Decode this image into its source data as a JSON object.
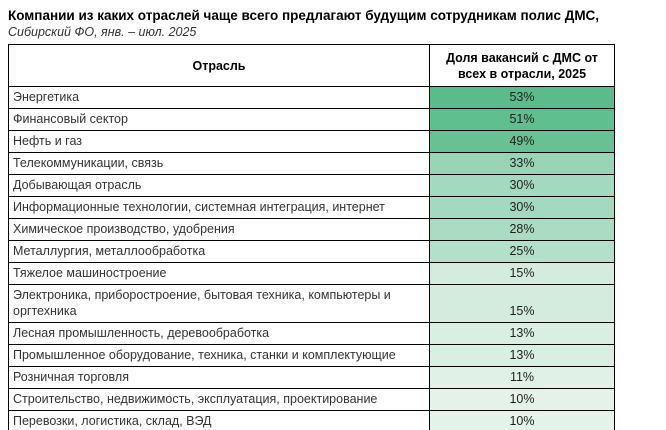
{
  "page": {
    "title": "Компании из каких отраслей чаще всего предлагают будущим сотрудникам полис ДМС,",
    "subtitle": "Сибирский ФО, янв. – июл. 2025"
  },
  "chart_data": {
    "type": "table",
    "title": "Компании из каких отраслей чаще всего предлагают будущим сотрудникам полис ДМС,",
    "subtitle": "Сибирский ФО, янв. – июл. 2025",
    "columns": [
      "Отрасль",
      "Доля вакансий с ДМС от всех в отрасли, 2025"
    ],
    "categories": [
      "Энергетика",
      "Финансовый сектор",
      "Нефть и газ",
      "Телекоммуникации, связь",
      "Добывающая отрасль",
      "Информационные технологии, системная интеграция, интернет",
      "Химическое производство, удобрения",
      "Металлургия, металлообработка",
      "Тяжелое машиностроение",
      "Электроника, приборостроение, бытовая техника, компьютеры и оргтехника",
      "Лесная промышленность, деревообработка",
      "Промышленное оборудование, техника, станки и комплектующие",
      "Розничная торговля",
      "Строительство, недвижимость, эксплуатация, проектирование",
      "Перевозки, логистика, склад, ВЭД"
    ],
    "values": [
      53,
      51,
      49,
      33,
      30,
      30,
      28,
      25,
      15,
      15,
      13,
      13,
      11,
      10,
      10
    ],
    "value_labels": [
      "53%",
      "51%",
      "49%",
      "33%",
      "30%",
      "30%",
      "28%",
      "25%",
      "15%",
      "15%",
      "13%",
      "13%",
      "11%",
      "10%",
      "10%"
    ],
    "unit": "%",
    "value_range": [
      10,
      53
    ],
    "heatmap": {
      "min_color": "#E3F3E9",
      "max_color": "#5ABC8A"
    },
    "cell_colors": [
      "#5ABC8A",
      "#60BF8F",
      "#67C193",
      "#99D5B5",
      "#A3D9BD",
      "#A3D9BD",
      "#AADCC1",
      "#B3E0C8",
      "#D3ECDE",
      "#D3ECDE",
      "#D9EFE2",
      "#D9EFE2",
      "#E0F2E7",
      "#E3F3E9",
      "#E3F3E9"
    ],
    "grid": true,
    "border_color": "#000000"
  }
}
